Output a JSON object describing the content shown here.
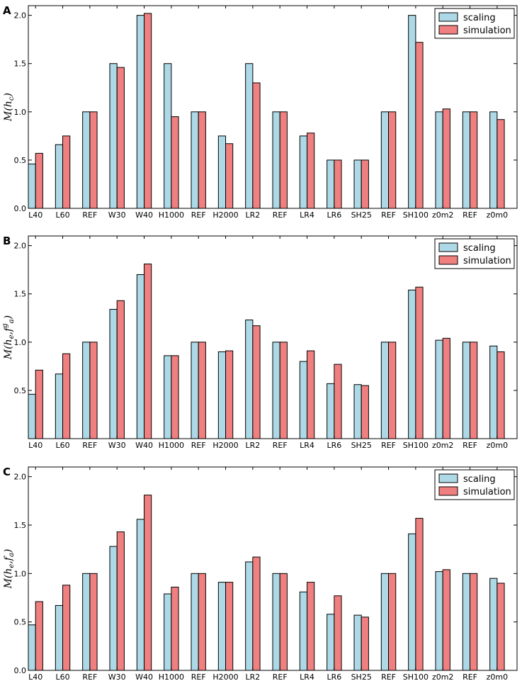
{
  "colors": {
    "scaling": "#add8e6",
    "simulation": "#f08080"
  },
  "chart_data": [
    {
      "type": "bar",
      "panel": "A",
      "ylabel": "M(h_c)",
      "ylabel_main": "M(h",
      "ylabel_sub": "c",
      "ylabel_sup": "",
      "ylim": [
        0,
        2.1
      ],
      "yticks": [
        "0.0",
        "0.5",
        "1.0",
        "1.5",
        "2.0"
      ],
      "categories": [
        "L40",
        "L60",
        "REF",
        "W30",
        "W40",
        "H1000",
        "REF",
        "H2000",
        "LR2",
        "REF",
        "LR4",
        "LR6",
        "SH25",
        "REF",
        "SH100",
        "z0m2",
        "REF",
        "z0m0"
      ],
      "legend": [
        "scaling",
        "simulation"
      ],
      "legend_position": "top-right",
      "series": [
        {
          "name": "scaling",
          "values": [
            0.46,
            0.66,
            1.0,
            1.5,
            2.0,
            1.5,
            1.0,
            0.75,
            1.5,
            1.0,
            0.75,
            0.5,
            0.5,
            1.0,
            2.0,
            1.0,
            1.0,
            1.0
          ]
        },
        {
          "name": "simulation",
          "values": [
            0.57,
            0.75,
            1.0,
            1.46,
            2.02,
            0.95,
            1.0,
            0.67,
            1.3,
            1.0,
            0.78,
            0.5,
            0.5,
            1.0,
            1.72,
            1.03,
            1.0,
            0.92
          ]
        }
      ]
    },
    {
      "type": "bar",
      "panel": "B",
      "ylabel": "M(h_e, f_a^g)",
      "ylabel_main": "M(h",
      "ylabel_sub": "e",
      "ylabel_mid": ",f",
      "ylabel_sub2": "a",
      "ylabel_sup": "g",
      "ylim": [
        0,
        2.1
      ],
      "yticks": [
        "0.5",
        "1.0",
        "1.5",
        "2.0"
      ],
      "categories": [
        "L40",
        "L60",
        "REF",
        "W30",
        "W40",
        "H1000",
        "REF",
        "H2000",
        "LR2",
        "REF",
        "LR4",
        "LR6",
        "SH25",
        "REF",
        "SH100",
        "z0m2",
        "REF",
        "z0m0"
      ],
      "legend": [
        "scaling",
        "simulation"
      ],
      "legend_position": "top-right",
      "series": [
        {
          "name": "scaling",
          "values": [
            0.46,
            0.67,
            1.0,
            1.34,
            1.7,
            0.86,
            1.0,
            0.9,
            1.23,
            1.0,
            0.8,
            0.57,
            0.56,
            1.0,
            1.54,
            1.02,
            1.0,
            0.96
          ]
        },
        {
          "name": "simulation",
          "values": [
            0.71,
            0.88,
            1.0,
            1.43,
            1.81,
            0.86,
            1.0,
            0.91,
            1.17,
            1.0,
            0.91,
            0.77,
            0.55,
            1.0,
            1.57,
            1.04,
            1.0,
            0.9
          ]
        }
      ]
    },
    {
      "type": "bar",
      "panel": "C",
      "ylabel": "M(h_e, f_a)",
      "ylabel_main": "M(h",
      "ylabel_sub": "e",
      "ylabel_mid": ",f",
      "ylabel_sub2": "a",
      "ylabel_sup": "",
      "ylim": [
        0,
        2.1
      ],
      "yticks": [
        "0.0",
        "0.5",
        "1.0",
        "1.5",
        "2.0"
      ],
      "categories": [
        "L40",
        "L60",
        "REF",
        "W30",
        "W40",
        "H1000",
        "REF",
        "H2000",
        "LR2",
        "REF",
        "LR4",
        "LR6",
        "SH25",
        "REF",
        "SH100",
        "z0m2",
        "REF",
        "z0m0"
      ],
      "legend": [
        "scaling",
        "simulation"
      ],
      "legend_position": "top-right",
      "series": [
        {
          "name": "scaling",
          "values": [
            0.47,
            0.67,
            1.0,
            1.28,
            1.56,
            0.79,
            1.0,
            0.91,
            1.12,
            1.0,
            0.81,
            0.58,
            0.57,
            1.0,
            1.41,
            1.02,
            1.0,
            0.95
          ]
        },
        {
          "name": "simulation",
          "values": [
            0.71,
            0.88,
            1.0,
            1.43,
            1.81,
            0.86,
            1.0,
            0.91,
            1.17,
            1.0,
            0.91,
            0.77,
            0.55,
            1.0,
            1.57,
            1.04,
            1.0,
            0.9
          ]
        }
      ]
    }
  ]
}
